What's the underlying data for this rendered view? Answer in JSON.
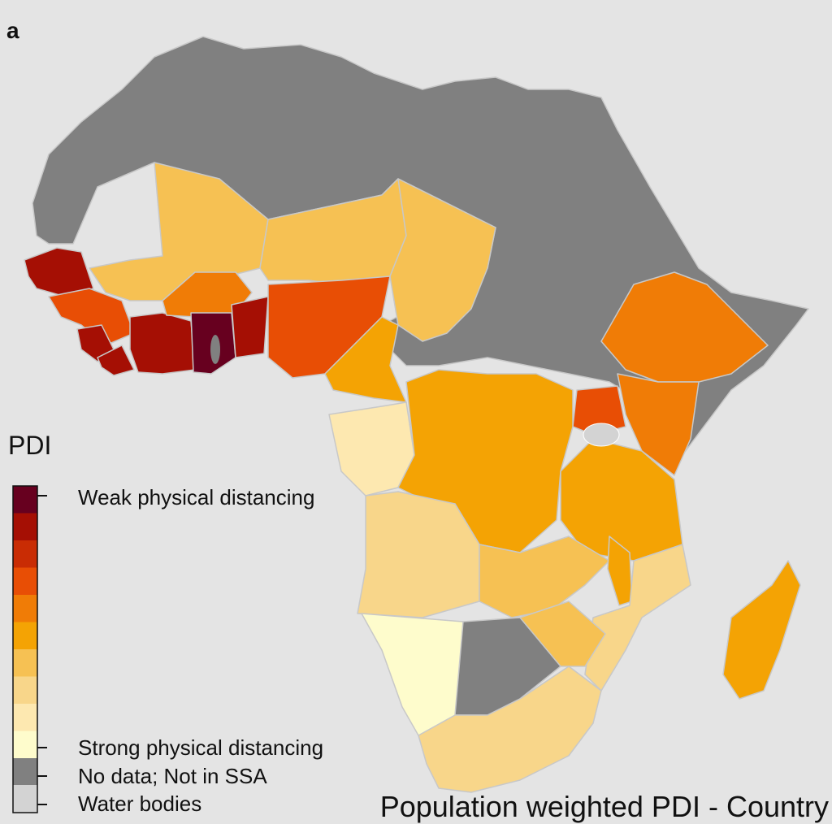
{
  "panel_label": "a",
  "legend": {
    "title": "PDI",
    "labels": {
      "weak": "Weak physical distancing",
      "strong": "Strong physical distancing",
      "no_data": "No data; Not in SSA",
      "water": "Water bodies"
    },
    "scale_colors": [
      "#67001f",
      "#a50f04",
      "#c92c04",
      "#e84e05",
      "#f07c06",
      "#f4a304",
      "#f6c153",
      "#f8d68a",
      "#fde8b0",
      "#fefccc"
    ],
    "no_data_color": "#808080",
    "water_color": "#d3d3d3"
  },
  "bottom_title": "Population weighted PDI - Country"
}
